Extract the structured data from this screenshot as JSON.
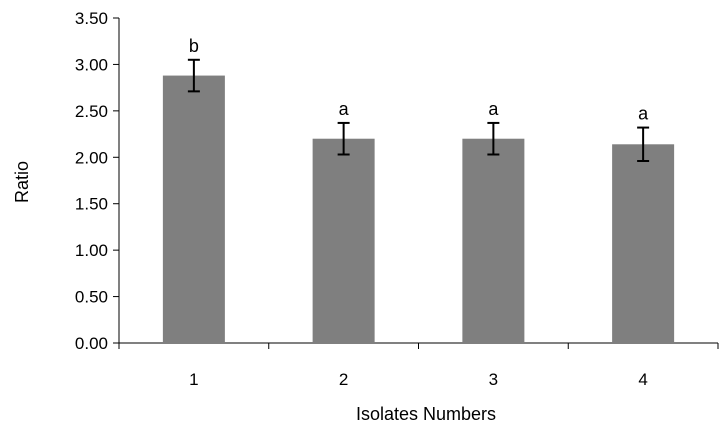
{
  "chart_data": {
    "type": "bar",
    "title": "",
    "xlabel": "Isolates Numbers",
    "ylabel": "Ratio",
    "categories": [
      "1",
      "2",
      "3",
      "4"
    ],
    "series": [
      {
        "values": [
          2.88,
          2.2,
          2.2,
          2.14
        ],
        "errors": [
          0.17,
          0.17,
          0.17,
          0.18
        ],
        "labels": [
          "b",
          "a",
          "a",
          "a"
        ]
      }
    ],
    "ylim": [
      0,
      3.5
    ],
    "yticks": [
      "0.00",
      "0.50",
      "1.00",
      "1.50",
      "2.00",
      "2.50",
      "3.00",
      "3.50"
    ],
    "grid": false,
    "legend": "none",
    "bar_color": "#7f7f7f",
    "error_bar_color": "#000000"
  }
}
